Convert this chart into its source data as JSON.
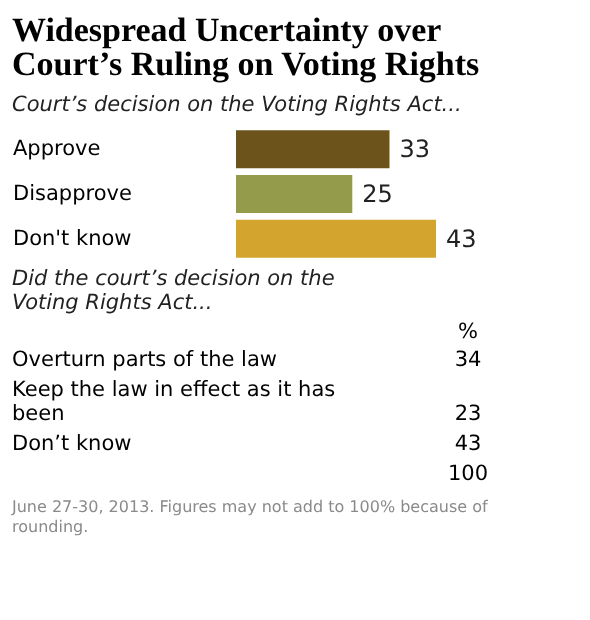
{
  "chart_data": [
    {
      "type": "bar",
      "orientation": "horizontal",
      "title": "Widespread Uncertainty over Court’s Ruling on Voting Rights",
      "subtitle": "Court’s decision on the Voting Rights Act...",
      "categories": [
        "Approve",
        "Disapprove",
        "Don't know"
      ],
      "values": [
        33,
        25,
        43
      ],
      "colors": [
        "#6b531b",
        "#949b4a",
        "#d4a52e"
      ],
      "data_labels": true,
      "tick_labels": "y"
    },
    {
      "type": "other",
      "title": "Did the court’s decision on the Voting Rights Act...",
      "categories": [
        "Overturn parts of the law",
        "Keep the law in effect as it has been",
        "Don’t know"
      ],
      "values": [
        34,
        23,
        43
      ],
      "data_labels": true,
      "annotations": [
        "%",
        "100",
        "June 27-30, 2013.  Figures may not add to 100% because of rounding."
      ]
    }
  ]
}
